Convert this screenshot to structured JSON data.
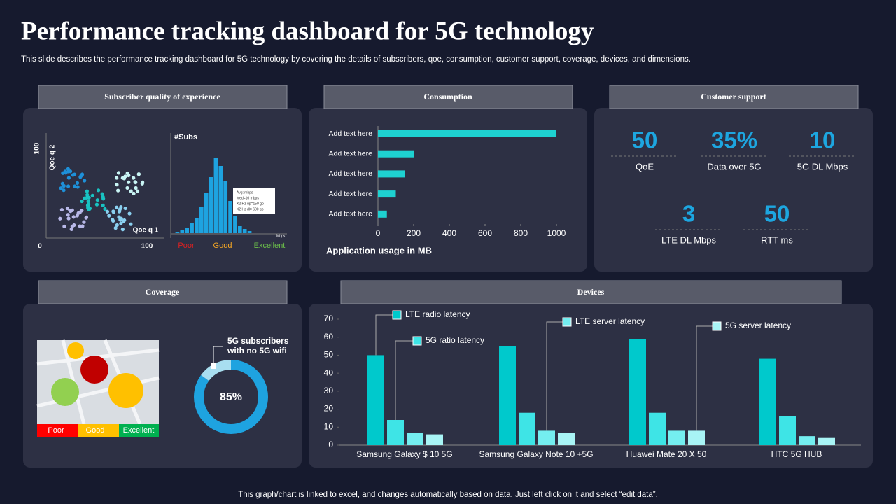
{
  "header": {
    "title": "Performance tracking dashboard for 5G technology",
    "subtitle": "This slide describes the performance tracking dashboard for 5G technology by covering the details of subscribers, qoe, consumption, customer support, coverage, devices, and dimensions."
  },
  "footer": "This graph/chart is linked to excel, and changes automatically based on data. Just left click on it and select “edit data”.",
  "panels": [
    "Subscriber quality of experience",
    "Consumption",
    "Customer support",
    "Coverage",
    "Devices"
  ],
  "subscriber": {
    "y_axis_max": "100",
    "y_axis_label": "Qoe q 2",
    "x_axis_label": "Qoe q 1",
    "x_axis_min": "0",
    "x_axis_max": "100",
    "hist_title": "#Subs",
    "hist_unit": "Mbps",
    "stats": [
      "Avg: mbps",
      "Med=10 mbps",
      "X2 Hz up=150 gb",
      "X2 Hz dl= 600 gb"
    ],
    "scale": [
      "Poor",
      "Good",
      "Excellent"
    ]
  },
  "support": {
    "kpis": [
      {
        "value": "50",
        "label": "QoE"
      },
      {
        "value": "35%",
        "label": "Data over 5G"
      },
      {
        "value": "10",
        "label": "5G DL Mbps"
      },
      {
        "value": "3",
        "label": "LTE DL Mbps"
      },
      {
        "value": "50",
        "label": "RTT  ms"
      }
    ]
  },
  "coverage": {
    "scale": [
      "Poor",
      "Good",
      "Excellent"
    ]
  },
  "chart_data": [
    {
      "type": "histogram-bar",
      "color": "#1ea3e0",
      "categories": [
        null,
        null,
        null,
        null,
        null,
        null,
        null,
        null,
        null,
        null,
        null,
        null,
        null,
        null,
        null,
        null
      ],
      "values": [
        2,
        4,
        8,
        14,
        22,
        38,
        58,
        80,
        108,
        96,
        74,
        46,
        24,
        10,
        6,
        3
      ]
    },
    {
      "type": "hbar",
      "color": "#1ed1d1",
      "categories": [
        "Add text here",
        "Add text here",
        "Add text here",
        "Add text here",
        "Add text here"
      ],
      "values": [
        1000,
        200,
        150,
        100,
        50
      ],
      "xlim": [
        0,
        1000
      ],
      "xticks": [
        0,
        200,
        400,
        600,
        800,
        1000
      ],
      "x_label": "Application usage in MB"
    },
    {
      "type": "donut",
      "values": [
        85,
        15
      ],
      "value_labels": [
        "85%",
        null
      ],
      "colors": [
        "#1ea3e0",
        "#a8def0"
      ],
      "annotation": [
        "5G subscribers",
        "with no 5G wifi"
      ]
    },
    {
      "type": "bar",
      "categories": [
        "Samsung Galaxy $ 10 5G",
        "Samsung Galaxy Note 10 +5G",
        "Huawei Mate 20 X 50",
        "HTC 5G HUB"
      ],
      "series": [
        {
          "name": "LTE radio latency",
          "color": "#00c9cc",
          "values": [
            50,
            55,
            59,
            48
          ]
        },
        {
          "name": "5G ratio latency",
          "color": "#3ee4e6",
          "values": [
            14,
            18,
            18,
            16
          ]
        },
        {
          "name": "LTE server latency",
          "color": "#74eef0",
          "values": [
            7,
            8,
            8,
            5
          ]
        },
        {
          "name": "5G server latency",
          "color": "#a8f4f5",
          "values": [
            6,
            7,
            8,
            4
          ]
        }
      ],
      "ylim": [
        0,
        70
      ],
      "yticks": [
        0,
        10,
        20,
        30,
        40,
        50,
        60,
        70
      ]
    }
  ]
}
